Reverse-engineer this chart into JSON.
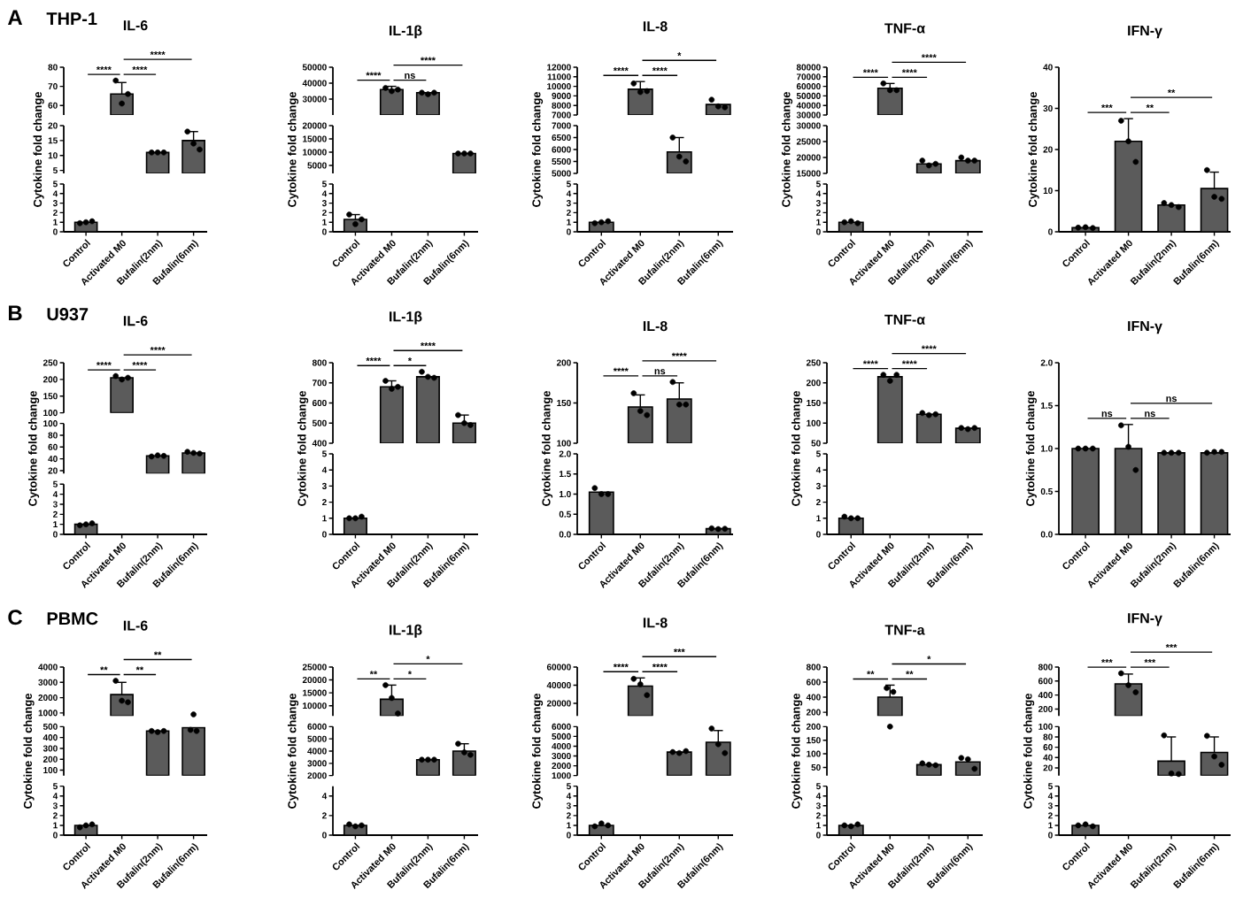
{
  "chart_data": [
    {
      "type": "bar",
      "title": "IL-6",
      "subtitle": "THP-1",
      "ylabel": "Cytokine fold change",
      "annotations": [
        "A",
        "****",
        "****",
        "****"
      ],
      "categories": [
        "Control",
        "Activated M0",
        "Bufalin(2nm)",
        "Bufalin(6nm)"
      ],
      "series": [
        {
          "color": "#5b5b5b",
          "values": [
            null,
            66,
            null,
            null
          ],
          "errors": [
            null,
            [
              66,
              72
            ],
            null,
            null
          ]
        },
        {
          "type": "scatter",
          "color": "#000000",
          "x": [
            "Activated M0",
            "Activated M0",
            "Activated M0"
          ],
          "values": [
            73,
            61,
            66
          ]
        }
      ],
      "ylim": [
        55,
        80
      ],
      "yticks": [
        60,
        70,
        80
      ],
      "tick_labels": "y",
      "marker": "circle"
    },
    {
      "type": "bar",
      "categories": [
        "Control",
        "Activated M0",
        "Bufalin(2nm)",
        "Bufalin(6nm)"
      ],
      "series": [
        {
          "color": "#5b5b5b",
          "values": [
            null,
            null,
            11,
            15
          ],
          "errors": [
            null,
            null,
            null,
            [
              15,
              18
            ]
          ]
        },
        {
          "type": "scatter",
          "color": "#000000",
          "x": [
            "Bufalin(2nm)",
            "Bufalin(2nm)",
            "Bufalin(2nm)",
            "Bufalin(6nm)",
            "Bufalin(6nm)",
            "Bufalin(6nm)"
          ],
          "values": [
            11,
            11,
            11,
            18,
            14,
            12
          ]
        }
      ],
      "ylim": [
        4,
        20
      ],
      "yticks": [
        5,
        10,
        15,
        20
      ],
      "tick_labels": "y",
      "marker": "circle"
    },
    {
      "type": "bar",
      "categories": [
        "Control",
        "Activated M0",
        "Bufalin(2nm)",
        "Bufalin(6nm)"
      ],
      "series": [
        {
          "color": "#5b5b5b",
          "values": [
            1.0,
            null,
            null,
            null
          ]
        },
        {
          "type": "scatter",
          "color": "#000000",
          "x": [
            "Control",
            "Control",
            "Control"
          ],
          "values": [
            0.9,
            1.0,
            1.1
          ]
        }
      ],
      "ylim": [
        0,
        5
      ],
      "yticks": [
        0,
        1,
        2,
        3,
        4,
        5
      ],
      "marker": "circle"
    },
    {
      "type": "bar",
      "title": "IL-1β",
      "ylabel": "Cytokine fold change",
      "annotations": [
        "****",
        "ns",
        "****"
      ],
      "categories": [
        "Control",
        "Activated M0",
        "Bufalin(2nm)",
        "Bufalin(6nm)"
      ],
      "series": [
        {
          "color": "#5b5b5b",
          "values": [
            null,
            36000,
            34000,
            null
          ],
          "errors": [
            null,
            [
              36000,
              38000
            ],
            null,
            null
          ]
        },
        {
          "type": "scatter",
          "color": "#000000",
          "x": [
            "Activated M0",
            "Activated M0",
            "Activated M0",
            "Bufalin(2nm)",
            "Bufalin(2nm)",
            "Bufalin(2nm)"
          ],
          "values": [
            37000,
            35000,
            36000,
            34000,
            33000,
            34000
          ]
        }
      ],
      "ylim": [
        20000,
        50000
      ],
      "yticks": [
        30000,
        40000,
        50000
      ],
      "tick_labels": "y",
      "marker": "circle"
    },
    {
      "type": "bar",
      "categories": [
        "Control",
        "Activated M0",
        "Bufalin(2nm)",
        "Bufalin(6nm)"
      ],
      "series": [
        {
          "color": "#5b5b5b",
          "values": [
            null,
            null,
            null,
            9500
          ]
        },
        {
          "type": "scatter",
          "color": "#000000",
          "x": [
            "Bufalin(6nm)",
            "Bufalin(6nm)",
            "Bufalin(6nm)"
          ],
          "values": [
            9500,
            9500,
            9500
          ]
        }
      ],
      "ylim": [
        2000,
        20000
      ],
      "yticks": [
        5000,
        10000,
        15000,
        20000
      ],
      "tick_labels": "y",
      "marker": "circle"
    },
    {
      "type": "bar",
      "categories": [
        "Control",
        "Activated M0",
        "Bufalin(2nm)",
        "Bufalin(6nm)"
      ],
      "series": [
        {
          "color": "#5b5b5b",
          "values": [
            1.3,
            null,
            null,
            null
          ],
          "errors": [
            [
              1.3,
              1.8
            ],
            null,
            null,
            null
          ]
        },
        {
          "type": "scatter",
          "color": "#000000",
          "x": [
            "Control",
            "Control",
            "Control"
          ],
          "values": [
            1.8,
            0.8,
            1.3
          ]
        }
      ],
      "ylim": [
        0,
        5
      ],
      "yticks": [
        0,
        1,
        2,
        3,
        4,
        5
      ],
      "marker": "circle"
    },
    {
      "type": "bar",
      "title": "IL-8",
      "ylabel": "Cytokine fold change",
      "annotations": [
        "****",
        "****",
        "*"
      ],
      "categories": [
        "Control",
        "Activated M0",
        "Bufalin(2nm)",
        "Bufalin(6nm)"
      ],
      "series": [
        {
          "color": "#5b5b5b",
          "values": [
            null,
            9700,
            null,
            8100
          ],
          "errors": [
            null,
            [
              9700,
              10500
            ],
            null,
            null
          ]
        },
        {
          "type": "scatter",
          "color": "#000000",
          "x": [
            "Activated M0",
            "Activated M0",
            "Activated M0",
            "Bufalin(6nm)",
            "Bufalin(6nm)",
            "Bufalin(6nm)"
          ],
          "values": [
            10300,
            9400,
            9500,
            8600,
            7900,
            7800
          ]
        }
      ],
      "ylim": [
        7000,
        12000
      ],
      "yticks": [
        7000,
        8000,
        9000,
        10000,
        11000,
        12000
      ],
      "tick_labels": "y",
      "marker": "circle"
    },
    {
      "type": "bar",
      "categories": [
        "Control",
        "Activated M0",
        "Bufalin(2nm)",
        "Bufalin(6nm)"
      ],
      "series": [
        {
          "color": "#5b5b5b",
          "values": [
            null,
            null,
            5900,
            null
          ],
          "errors": [
            null,
            null,
            [
              5900,
              6500
            ],
            null
          ]
        },
        {
          "type": "scatter",
          "color": "#000000",
          "x": [
            "Bufalin(2nm)",
            "Bufalin(2nm)",
            "Bufalin(2nm)"
          ],
          "values": [
            6500,
            5700,
            5500
          ]
        }
      ],
      "ylim": [
        5000,
        7000
      ],
      "yticks": [
        5000,
        5500,
        6000,
        6500,
        7000
      ],
      "tick_labels": "y",
      "marker": "circle"
    },
    {
      "type": "bar",
      "categories": [
        "Control",
        "Activated M0",
        "Bufalin(2nm)",
        "Bufalin(6nm)"
      ],
      "series": [
        {
          "color": "#5b5b5b",
          "values": [
            1.0,
            null,
            null,
            null
          ]
        },
        {
          "type": "scatter",
          "color": "#000000",
          "x": [
            "Control",
            "Control",
            "Control"
          ],
          "values": [
            0.9,
            1.0,
            1.1
          ]
        }
      ],
      "ylim": [
        0,
        5
      ],
      "yticks": [
        0,
        1,
        2,
        3,
        4,
        5
      ],
      "marker": "circle"
    },
    {
      "type": "bar",
      "title": "TNF-α",
      "ylabel": "Cytokine fold change",
      "annotations": [
        "****",
        "****",
        "****"
      ],
      "categories": [
        "Control",
        "Activated M0",
        "Bufalin(2nm)",
        "Bufalin(6nm)"
      ],
      "series": [
        {
          "color": "#5b5b5b",
          "values": [
            null,
            58000,
            null,
            null
          ],
          "errors": [
            null,
            [
              58000,
              63000
            ],
            null,
            null
          ]
        },
        {
          "type": "scatter",
          "color": "#000000",
          "x": [
            "Activated M0",
            "Activated M0",
            "Activated M0"
          ],
          "values": [
            63000,
            56000,
            56000
          ]
        }
      ],
      "ylim": [
        30000,
        80000
      ],
      "yticks": [
        30000,
        40000,
        50000,
        60000,
        70000,
        80000
      ],
      "tick_labels": "y",
      "marker": "circle"
    },
    {
      "type": "bar",
      "categories": [
        "Control",
        "Activated M0",
        "Bufalin(2nm)",
        "Bufalin(6nm)"
      ],
      "series": [
        {
          "color": "#5b5b5b",
          "values": [
            null,
            null,
            18000,
            19000
          ]
        },
        {
          "type": "scatter",
          "color": "#000000",
          "x": [
            "Bufalin(2nm)",
            "Bufalin(2nm)",
            "Bufalin(2nm)",
            "Bufalin(6nm)",
            "Bufalin(6nm)",
            "Bufalin(6nm)"
          ],
          "values": [
            19000,
            17500,
            18000,
            20000,
            19000,
            19000
          ]
        }
      ],
      "ylim": [
        15000,
        30000
      ],
      "yticks": [
        15000,
        20000,
        25000,
        30000
      ],
      "tick_labels": "y",
      "marker": "circle"
    },
    {
      "type": "bar",
      "categories": [
        "Control",
        "Activated M0",
        "Bufalin(2nm)",
        "Bufalin(6nm)"
      ],
      "series": [
        {
          "color": "#5b5b5b",
          "values": [
            1.0,
            null,
            null,
            null
          ]
        },
        {
          "type": "scatter",
          "color": "#000000",
          "x": [
            "Control",
            "Control",
            "Control"
          ],
          "values": [
            1.0,
            1.1,
            0.9
          ]
        }
      ],
      "ylim": [
        0,
        5
      ],
      "yticks": [
        0,
        1,
        2,
        3,
        4,
        5
      ],
      "marker": "circle"
    },
    {
      "type": "bar",
      "title": "IFN-γ",
      "ylabel": "Cytokine fold change",
      "annotations": [
        "***",
        "**",
        "**"
      ],
      "categories": [
        "Control",
        "Activated M0",
        "Bufalin(2nm)",
        "Bufalin(6nm)"
      ],
      "series": [
        {
          "color": "#5b5b5b",
          "values": [
            1.0,
            22,
            6.5,
            10.5
          ],
          "errors": [
            null,
            [
              22,
              27.5
            ],
            null,
            [
              10.5,
              14.5
            ]
          ]
        },
        {
          "type": "scatter",
          "color": "#000000",
          "x": [
            "Control",
            "Control",
            "Control",
            "Activated M0",
            "Activated M0",
            "Activated M0",
            "Bufalin(2nm)",
            "Bufalin(2nm)",
            "Bufalin(2nm)",
            "Bufalin(6nm)",
            "Bufalin(6nm)",
            "Bufalin(6nm)"
          ],
          "values": [
            1.0,
            1.1,
            0.9,
            27,
            22,
            17,
            7,
            6.5,
            6,
            15,
            8.5,
            8
          ]
        }
      ],
      "ylim": [
        0,
        40
      ],
      "yticks": [
        0,
        10,
        20,
        30,
        40
      ],
      "marker": "circle"
    },
    {
      "type": "bar",
      "title": "IL-6",
      "subtitle": "U937",
      "ylabel": "Cytokine fold change",
      "annotations": [
        "B",
        "****",
        "****",
        "****"
      ],
      "categories": [
        "Control",
        "Activated M0",
        "Bufalin(2nm)",
        "Bufalin(6nm)"
      ],
      "series": [
        {
          "color": "#5b5b5b",
          "values": [
            null,
            205,
            null,
            null
          ]
        },
        {
          "type": "scatter",
          "color": "#000000",
          "x": [
            "Activated M0",
            "Activated M0",
            "Activated M0"
          ],
          "values": [
            210,
            200,
            205
          ]
        }
      ],
      "ylim": [
        100,
        250
      ],
      "yticks": [
        100,
        150,
        200,
        250
      ],
      "tick_labels": "y",
      "marker": "circle"
    },
    {
      "type": "bar",
      "categories": [
        "Control",
        "Activated M0",
        "Bufalin(2nm)",
        "Bufalin(6nm)"
      ],
      "series": [
        {
          "color": "#5b5b5b",
          "values": [
            null,
            null,
            45,
            50
          ]
        },
        {
          "type": "scatter",
          "color": "#000000",
          "x": [
            "Bufalin(2nm)",
            "Bufalin(2nm)",
            "Bufalin(2nm)",
            "Bufalin(6nm)",
            "Bufalin(6nm)",
            "Bufalin(6nm)"
          ],
          "values": [
            44,
            46,
            45,
            52,
            50,
            49
          ]
        }
      ],
      "ylim": [
        15,
        100
      ],
      "yticks": [
        20,
        40,
        60,
        80,
        100
      ],
      "tick_labels": "y",
      "marker": "circle"
    },
    {
      "type": "bar",
      "categories": [
        "Control",
        "Activated M0",
        "Bufalin(2nm)",
        "Bufalin(6nm)"
      ],
      "series": [
        {
          "color": "#5b5b5b",
          "values": [
            1.0,
            null,
            null,
            null
          ]
        },
        {
          "type": "scatter",
          "color": "#000000",
          "x": [
            "Control",
            "Control",
            "Control"
          ],
          "values": [
            0.9,
            1.0,
            1.1
          ]
        }
      ],
      "ylim": [
        0,
        5
      ],
      "yticks": [
        0,
        1,
        2,
        3,
        4,
        5
      ],
      "marker": "circle"
    },
    {
      "type": "bar",
      "title": "IL-1β",
      "ylabel": "Cytokine fold change",
      "annotations": [
        "****",
        "*",
        "****"
      ],
      "categories": [
        "Control",
        "Activated M0",
        "Bufalin(2nm)",
        "Bufalin(6nm)"
      ],
      "series": [
        {
          "color": "#5b5b5b",
          "values": [
            null,
            680,
            730,
            500
          ],
          "errors": [
            null,
            [
              680,
              710
            ],
            null,
            [
              500,
              540
            ]
          ]
        },
        {
          "type": "scatter",
          "color": "#000000",
          "x": [
            "Activated M0",
            "Activated M0",
            "Activated M0",
            "Bufalin(2nm)",
            "Bufalin(2nm)",
            "Bufalin(2nm)",
            "Bufalin(6nm)",
            "Bufalin(6nm)",
            "Bufalin(6nm)"
          ],
          "values": [
            710,
            670,
            680,
            755,
            730,
            725,
            540,
            500,
            490
          ]
        }
      ],
      "ylim": [
        400,
        800
      ],
      "yticks": [
        400,
        500,
        600,
        700,
        800
      ],
      "tick_labels": "y",
      "marker": "circle"
    },
    {
      "type": "bar",
      "categories": [
        "Control",
        "Activated M0",
        "Bufalin(2nm)",
        "Bufalin(6nm)"
      ],
      "series": [
        {
          "color": "#5b5b5b",
          "values": [
            1.0,
            null,
            null,
            null
          ]
        },
        {
          "type": "scatter",
          "color": "#000000",
          "x": [
            "Control",
            "Control",
            "Control"
          ],
          "values": [
            1.0,
            1.0,
            1.1
          ]
        }
      ],
      "ylim": [
        0,
        5
      ],
      "yticks": [
        0,
        1,
        2,
        3,
        4,
        5
      ],
      "marker": "circle"
    },
    {
      "type": "bar",
      "title": "IL-8",
      "ylabel": "Cytokine fold change",
      "annotations": [
        "****",
        "ns",
        "****"
      ],
      "categories": [
        "Control",
        "Activated M0",
        "Bufalin(2nm)",
        "Bufalin(6nm)"
      ],
      "series": [
        {
          "color": "#5b5b5b",
          "values": [
            null,
            145,
            155,
            null
          ],
          "errors": [
            null,
            [
              145,
              160
            ],
            [
              155,
              175
            ],
            null
          ]
        },
        {
          "type": "scatter",
          "color": "#000000",
          "x": [
            "Activated M0",
            "Activated M0",
            "Activated M0",
            "Bufalin(2nm)",
            "Bufalin(2nm)",
            "Bufalin(2nm)"
          ],
          "values": [
            162,
            140,
            135,
            176,
            148,
            148
          ]
        }
      ],
      "ylim": [
        100,
        200
      ],
      "yticks": [
        100,
        150,
        200
      ],
      "tick_labels": "y",
      "marker": "circle"
    },
    {
      "type": "bar",
      "categories": [
        "Control",
        "Activated M0",
        "Bufalin(2nm)",
        "Bufalin(6nm)"
      ],
      "series": [
        {
          "color": "#5b5b5b",
          "values": [
            1.05,
            null,
            null,
            0.14
          ]
        },
        {
          "type": "scatter",
          "color": "#000000",
          "x": [
            "Control",
            "Control",
            "Control",
            "Bufalin(6nm)",
            "Bufalin(6nm)",
            "Bufalin(6nm)"
          ],
          "values": [
            1.15,
            1.0,
            1.0,
            0.15,
            0.13,
            0.14
          ]
        }
      ],
      "ylim": [
        0,
        2
      ],
      "yticks": [
        {
          "value": 0,
          "label": "0.0"
        },
        {
          "value": 0.5,
          "label": "0.5"
        },
        {
          "value": 1,
          "label": "1.0"
        },
        {
          "value": 1.5,
          "label": "1.5"
        },
        {
          "value": 2,
          "label": "2.0"
        }
      ],
      "marker": "circle"
    },
    {
      "type": "bar",
      "title": "TNF-α",
      "ylabel": "Cytokine fold change",
      "annotations": [
        "****",
        "****",
        "****"
      ],
      "categories": [
        "Control",
        "Activated M0",
        "Bufalin(2nm)",
        "Bufalin(6nm)"
      ],
      "series": [
        {
          "color": "#5b5b5b",
          "values": [
            null,
            215,
            122,
            87
          ]
        },
        {
          "type": "scatter",
          "color": "#000000",
          "x": [
            "Activated M0",
            "Activated M0",
            "Activated M0",
            "Bufalin(2nm)",
            "Bufalin(2nm)",
            "Bufalin(2nm)",
            "Bufalin(6nm)",
            "Bufalin(6nm)",
            "Bufalin(6nm)"
          ],
          "values": [
            220,
            205,
            220,
            125,
            120,
            122,
            88,
            85,
            88
          ]
        }
      ],
      "ylim": [
        50,
        250
      ],
      "yticks": [
        50,
        100,
        150,
        200,
        250
      ],
      "tick_labels": "y",
      "marker": "circle"
    },
    {
      "type": "bar",
      "categories": [
        "Control",
        "Activated M0",
        "Bufalin(2nm)",
        "Bufalin(6nm)"
      ],
      "series": [
        {
          "color": "#5b5b5b",
          "values": [
            1.0,
            null,
            null,
            null
          ]
        },
        {
          "type": "scatter",
          "color": "#000000",
          "x": [
            "Control",
            "Control",
            "Control"
          ],
          "values": [
            1.1,
            1.0,
            1.0
          ]
        }
      ],
      "ylim": [
        0,
        5
      ],
      "yticks": [
        0,
        1,
        2,
        3,
        4,
        5
      ],
      "marker": "circle"
    },
    {
      "type": "bar",
      "title": "IFN-γ",
      "ylabel": "Cytokine fold change",
      "annotations": [
        "ns",
        "ns",
        "ns"
      ],
      "categories": [
        "Control",
        "Activated M0",
        "Bufalin(2nm)",
        "Bufalin(6nm)"
      ],
      "series": [
        {
          "color": "#5b5b5b",
          "values": [
            1.0,
            1.0,
            0.95,
            0.95
          ],
          "errors": [
            null,
            [
              1.0,
              1.28
            ],
            null,
            null
          ]
        },
        {
          "type": "scatter",
          "color": "#000000",
          "x": [
            "Control",
            "Control",
            "Control",
            "Activated M0",
            "Activated M0",
            "Activated M0",
            "Bufalin(2nm)",
            "Bufalin(2nm)",
            "Bufalin(2nm)",
            "Bufalin(6nm)",
            "Bufalin(6nm)",
            "Bufalin(6nm)"
          ],
          "values": [
            1.0,
            1.0,
            1.0,
            1.27,
            1.02,
            0.75,
            0.95,
            0.95,
            0.95,
            0.95,
            0.96,
            0.96
          ]
        }
      ],
      "ylim": [
        0,
        2
      ],
      "yticks": [
        {
          "value": 0,
          "label": "0.0"
        },
        {
          "value": 0.5,
          "label": "0.5"
        },
        {
          "value": 1,
          "label": "1.0"
        },
        {
          "value": 1.5,
          "label": "1.5"
        },
        {
          "value": 2,
          "label": "2.0"
        }
      ],
      "marker": "circle"
    },
    {
      "type": "bar",
      "title": "IL-6",
      "subtitle": "PBMC",
      "ylabel": "Cytokine fold change",
      "annotations": [
        "C",
        "**",
        "**",
        "**"
      ],
      "categories": [
        "Control",
        "Activated M0",
        "Bufalin(2nm)",
        "Bufalin(6nm)"
      ],
      "series": [
        {
          "color": "#5b5b5b",
          "values": [
            null,
            2200,
            null,
            null
          ],
          "errors": [
            null,
            [
              2200,
              3000
            ],
            null,
            null
          ]
        },
        {
          "type": "scatter",
          "color": "#000000",
          "x": [
            "Activated M0",
            "Activated M0",
            "Activated M0",
            "Bufalin(6nm)"
          ],
          "values": [
            3100,
            1800,
            1700,
            900
          ]
        }
      ],
      "ylim": [
        800,
        4000
      ],
      "yticks": [
        1000,
        2000,
        3000,
        4000
      ],
      "tick_labels": "y",
      "marker": "circle"
    },
    {
      "type": "bar",
      "categories": [
        "Control",
        "Activated M0",
        "Bufalin(2nm)",
        "Bufalin(6nm)"
      ],
      "series": [
        {
          "color": "#5b5b5b",
          "values": [
            null,
            null,
            460,
            490
          ]
        },
        {
          "type": "scatter",
          "color": "#000000",
          "x": [
            "Bufalin(2nm)",
            "Bufalin(2nm)",
            "Bufalin(2nm)",
            "Bufalin(6nm)",
            "Bufalin(6nm)"
          ],
          "values": [
            460,
            450,
            460,
            470,
            460
          ]
        }
      ],
      "ylim": [
        50,
        500
      ],
      "yticks": [
        100,
        200,
        300,
        400,
        500
      ],
      "tick_labels": "y",
      "marker": "circle"
    },
    {
      "type": "bar",
      "categories": [
        "Control",
        "Activated M0",
        "Bufalin(2nm)",
        "Bufalin(6nm)"
      ],
      "series": [
        {
          "color": "#5b5b5b",
          "values": [
            1.0,
            null,
            null,
            null
          ]
        },
        {
          "type": "scatter",
          "color": "#000000",
          "x": [
            "Control",
            "Control",
            "Control"
          ],
          "values": [
            0.8,
            1.0,
            1.1
          ]
        }
      ],
      "ylim": [
        0,
        5
      ],
      "yticks": [
        0,
        1,
        2,
        3,
        4,
        5
      ],
      "marker": "circle"
    },
    {
      "type": "bar",
      "title": "IL-1β",
      "ylabel": "Cytokine fold change",
      "annotations": [
        "**",
        "*",
        "*"
      ],
      "categories": [
        "Control",
        "Activated M0",
        "Bufalin(2nm)",
        "Bufalin(6nm)"
      ],
      "series": [
        {
          "color": "#5b5b5b",
          "values": [
            null,
            12500,
            null,
            null
          ],
          "errors": [
            null,
            [
              12500,
              18000
            ],
            null,
            null
          ]
        },
        {
          "type": "scatter",
          "color": "#000000",
          "x": [
            "Activated M0",
            "Activated M0",
            "Activated M0"
          ],
          "values": [
            18000,
            13000,
            7000
          ]
        }
      ],
      "ylim": [
        6000,
        25000
      ],
      "yticks": [
        10000,
        15000,
        20000,
        25000
      ],
      "tick_labels": "y",
      "marker": "circle"
    },
    {
      "type": "bar",
      "categories": [
        "Control",
        "Activated M0",
        "Bufalin(2nm)",
        "Bufalin(6nm)"
      ],
      "series": [
        {
          "color": "#5b5b5b",
          "values": [
            null,
            null,
            3300,
            4000
          ],
          "errors": [
            null,
            null,
            null,
            [
              4000,
              4600
            ]
          ]
        },
        {
          "type": "scatter",
          "color": "#000000",
          "x": [
            "Bufalin(2nm)",
            "Bufalin(2nm)",
            "Bufalin(2nm)",
            "Bufalin(6nm)",
            "Bufalin(6nm)",
            "Bufalin(6nm)"
          ],
          "values": [
            3300,
            3300,
            3300,
            4600,
            3900,
            3700
          ]
        }
      ],
      "ylim": [
        2000,
        6000
      ],
      "yticks": [
        2000,
        3000,
        4000,
        5000,
        6000
      ],
      "tick_labels": "y",
      "marker": "circle"
    },
    {
      "type": "bar",
      "categories": [
        "Control",
        "Activated M0",
        "Bufalin(2nm)",
        "Bufalin(6nm)"
      ],
      "series": [
        {
          "color": "#5b5b5b",
          "values": [
            1.0,
            null,
            null,
            null
          ]
        },
        {
          "type": "scatter",
          "color": "#000000",
          "x": [
            "Control",
            "Control",
            "Control"
          ],
          "values": [
            1.1,
            0.9,
            1.0
          ]
        }
      ],
      "ylim": [
        0,
        5
      ],
      "yticks": [
        0,
        2,
        4
      ],
      "marker": "circle"
    },
    {
      "type": "bar",
      "title": "IL-8",
      "ylabel": "Cytokine fold change",
      "annotations": [
        "****",
        "****",
        "***"
      ],
      "categories": [
        "Control",
        "Activated M0",
        "Bufalin(2nm)",
        "Bufalin(6nm)"
      ],
      "series": [
        {
          "color": "#5b5b5b",
          "values": [
            null,
            39000,
            null,
            null
          ],
          "errors": [
            null,
            [
              39000,
              48000
            ],
            null,
            null
          ]
        },
        {
          "type": "scatter",
          "color": "#000000",
          "x": [
            "Activated M0",
            "Activated M0",
            "Activated M0"
          ],
          "values": [
            47000,
            41000,
            29000
          ]
        }
      ],
      "ylim": [
        6000,
        60000
      ],
      "yticks": [
        20000,
        40000,
        60000
      ],
      "tick_labels": "y",
      "marker": "circle"
    },
    {
      "type": "bar",
      "categories": [
        "Control",
        "Activated M0",
        "Bufalin(2nm)",
        "Bufalin(6nm)"
      ],
      "series": [
        {
          "color": "#5b5b5b",
          "values": [
            null,
            null,
            3400,
            4400
          ],
          "errors": [
            null,
            null,
            null,
            [
              4400,
              5600
            ]
          ]
        },
        {
          "type": "scatter",
          "color": "#000000",
          "x": [
            "Bufalin(2nm)",
            "Bufalin(2nm)",
            "Bufalin(2nm)",
            "Bufalin(6nm)",
            "Bufalin(6nm)",
            "Bufalin(6nm)"
          ],
          "values": [
            3400,
            3300,
            3500,
            5800,
            4200,
            3300
          ]
        }
      ],
      "ylim": [
        1000,
        6000
      ],
      "yticks": [
        1000,
        2000,
        3000,
        4000,
        5000,
        6000
      ],
      "tick_labels": "y",
      "marker": "circle"
    },
    {
      "type": "bar",
      "categories": [
        "Control",
        "Activated M0",
        "Bufalin(2nm)",
        "Bufalin(6nm)"
      ],
      "series": [
        {
          "color": "#5b5b5b",
          "values": [
            1.0,
            null,
            null,
            null
          ]
        },
        {
          "type": "scatter",
          "color": "#000000",
          "x": [
            "Control",
            "Control",
            "Control"
          ],
          "values": [
            0.9,
            1.2,
            1.0
          ]
        }
      ],
      "ylim": [
        0,
        5
      ],
      "yticks": [
        0,
        1,
        2,
        3,
        4,
        5
      ],
      "marker": "circle"
    },
    {
      "type": "bar",
      "title": "TNF-a",
      "ylabel": "Cytokine fold change",
      "annotations": [
        "**",
        "**",
        "*"
      ],
      "categories": [
        "Control",
        "Activated M0",
        "Bufalin(2nm)",
        "Bufalin(6nm)"
      ],
      "series": [
        {
          "color": "#5b5b5b",
          "values": [
            null,
            400,
            null,
            null
          ],
          "errors": [
            null,
            [
              400,
              560
            ],
            null,
            null
          ]
        },
        {
          "type": "scatter",
          "color": "#000000",
          "x": [
            "Activated M0",
            "Activated M0"
          ],
          "values": [
            520,
            470
          ]
        }
      ],
      "ylim": [
        150,
        800
      ],
      "yticks": [
        200,
        400,
        600,
        800
      ],
      "tick_labels": "y",
      "marker": "circle"
    },
    {
      "type": "bar",
      "categories": [
        "Control",
        "Activated M0",
        "Bufalin(2nm)",
        "Bufalin(6nm)"
      ],
      "series": [
        {
          "color": "#5b5b5b",
          "values": [
            null,
            null,
            60,
            70
          ]
        },
        {
          "type": "scatter",
          "color": "#000000",
          "x": [
            "Activated M0",
            "Bufalin(2nm)",
            "Bufalin(2nm)",
            "Bufalin(2nm)",
            "Bufalin(6nm)",
            "Bufalin(6nm)",
            "Bufalin(6nm)"
          ],
          "values": [
            200,
            65,
            60,
            58,
            85,
            80,
            45
          ]
        }
      ],
      "ylim": [
        20,
        200
      ],
      "yticks": [
        50,
        100,
        150,
        200
      ],
      "tick_labels": "y",
      "marker": "circle"
    },
    {
      "type": "bar",
      "categories": [
        "Control",
        "Activated M0",
        "Bufalin(2nm)",
        "Bufalin(6nm)"
      ],
      "series": [
        {
          "color": "#5b5b5b",
          "values": [
            1.0,
            null,
            null,
            null
          ]
        },
        {
          "type": "scatter",
          "color": "#000000",
          "x": [
            "Control",
            "Control",
            "Control"
          ],
          "values": [
            1.0,
            0.9,
            1.1
          ]
        }
      ],
      "ylim": [
        0,
        5
      ],
      "yticks": [
        0,
        1,
        2,
        3,
        4,
        5
      ],
      "marker": "circle"
    },
    {
      "type": "bar",
      "title": "IFN-γ",
      "ylabel": "Cytokine fold change",
      "annotations": [
        "***",
        "***",
        "***"
      ],
      "categories": [
        "Control",
        "Activated M0",
        "Bufalin(2nm)",
        "Bufalin(6nm)"
      ],
      "series": [
        {
          "color": "#5b5b5b",
          "values": [
            null,
            560,
            null,
            null
          ],
          "errors": [
            null,
            [
              560,
              700
            ],
            null,
            null
          ]
        },
        {
          "type": "scatter",
          "color": "#000000",
          "x": [
            "Activated M0",
            "Activated M0",
            "Activated M0"
          ],
          "values": [
            710,
            540,
            440
          ]
        }
      ],
      "ylim": [
        100,
        800
      ],
      "yticks": [
        200,
        400,
        600,
        800
      ],
      "tick_labels": "y",
      "marker": "circle"
    },
    {
      "type": "bar",
      "categories": [
        "Control",
        "Activated M0",
        "Bufalin(2nm)",
        "Bufalin(6nm)"
      ],
      "series": [
        {
          "color": "#5b5b5b",
          "values": [
            null,
            null,
            33,
            50
          ],
          "errors": [
            null,
            null,
            [
              33,
              80
            ],
            [
              50,
              80
            ]
          ]
        },
        {
          "type": "scatter",
          "color": "#000000",
          "x": [
            "Bufalin(2nm)",
            "Bufalin(2nm)",
            "Bufalin(2nm)",
            "Bufalin(6nm)",
            "Bufalin(6nm)",
            "Bufalin(6nm)"
          ],
          "values": [
            83,
            9,
            8,
            82,
            42,
            26
          ]
        }
      ],
      "ylim": [
        5,
        100
      ],
      "yticks": [
        20,
        40,
        60,
        80,
        100
      ],
      "tick_labels": "y",
      "marker": "circle"
    },
    {
      "type": "bar",
      "categories": [
        "Control",
        "Activated M0",
        "Bufalin(2nm)",
        "Bufalin(6nm)"
      ],
      "series": [
        {
          "color": "#5b5b5b",
          "values": [
            1.0,
            null,
            null,
            null
          ]
        },
        {
          "type": "scatter",
          "color": "#000000",
          "x": [
            "Control",
            "Control",
            "Control"
          ],
          "values": [
            1.0,
            1.1,
            0.9
          ]
        }
      ],
      "ylim": [
        0,
        5
      ],
      "yticks": [
        0,
        1,
        2,
        3,
        4,
        5
      ],
      "marker": "circle"
    }
  ]
}
